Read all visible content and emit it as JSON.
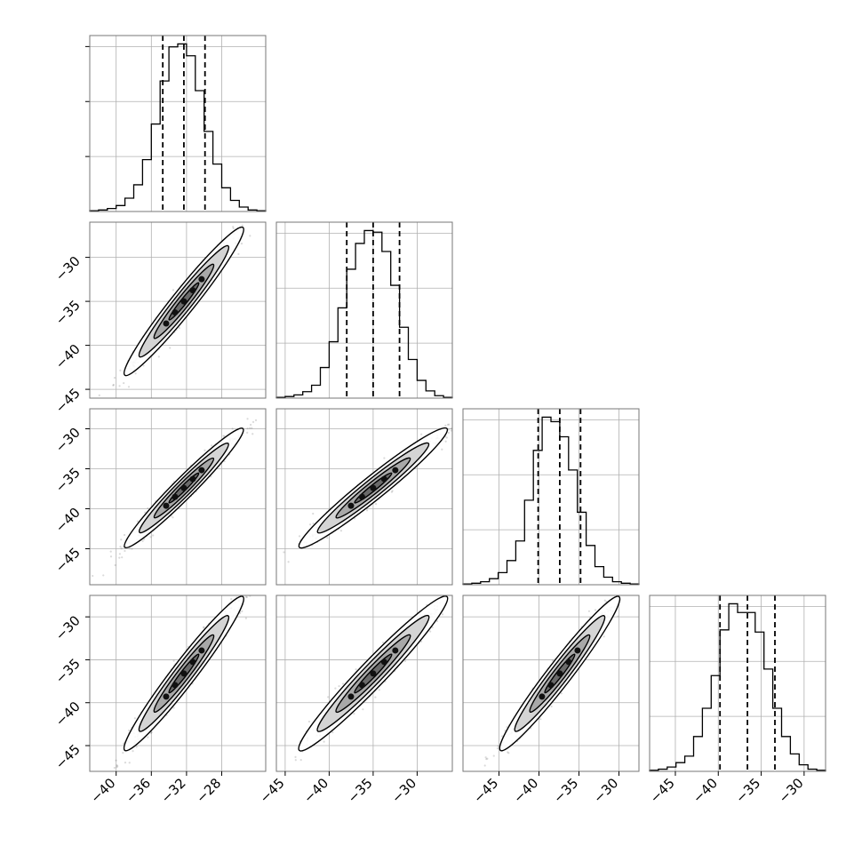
{
  "chart_data": {
    "type": "corner",
    "n_params": 4,
    "params": [
      {
        "range": [
          -43,
          -23
        ],
        "ticks": [
          -40,
          -36,
          -32,
          -28
        ],
        "tick_labels": [
          "−40",
          "−36",
          "−32",
          "−28"
        ],
        "quantiles": [
          -34.7,
          -32.3,
          -29.9
        ],
        "hist": [
          1,
          2,
          4,
          8,
          18,
          36,
          70,
          118,
          176,
          222,
          226,
          210,
          163,
          108,
          64,
          32,
          15,
          6,
          2,
          1
        ],
        "hist_max": 226
      },
      {
        "range": [
          -46,
          -26
        ],
        "ticks": [
          -45,
          -40,
          -35,
          -30
        ],
        "tick_labels": [
          "−45",
          "−40",
          "−35",
          "−30"
        ],
        "quantiles": [
          -38.0,
          -35.0,
          -32.0
        ],
        "hist": [
          1,
          2,
          4,
          8,
          16,
          38,
          70,
          112,
          160,
          192,
          208,
          206,
          182,
          140,
          88,
          48,
          22,
          9,
          3,
          1
        ],
        "hist_max": 208
      },
      {
        "range": [
          -49.5,
          -27.5
        ],
        "ticks": [
          -45,
          -40,
          -35,
          -30
        ],
        "tick_labels": [
          "−45",
          "−40",
          "−35",
          "−30"
        ],
        "quantiles": [
          -40.1,
          -37.4,
          -34.8
        ],
        "hist": [
          1,
          2,
          4,
          8,
          16,
          32,
          58,
          112,
          178,
          222,
          216,
          196,
          152,
          96,
          52,
          24,
          10,
          4,
          2,
          1
        ],
        "hist_max": 222
      },
      {
        "range": [
          -48,
          -27.5
        ],
        "ticks": [
          -45,
          -40,
          -35,
          -30
        ],
        "tick_labels": [
          "−45",
          "−40",
          "−35",
          "−30"
        ],
        "quantiles": [
          -39.8,
          -36.6,
          -33.4
        ],
        "hist": [
          1,
          2,
          4,
          8,
          14,
          32,
          58,
          88,
          130,
          154,
          146,
          146,
          128,
          94,
          58,
          32,
          16,
          6,
          2,
          1
        ],
        "hist_max": 154
      }
    ],
    "correlation": 0.97,
    "x_tick_rotation": -45,
    "y_tick_rotation": -45,
    "grid": true,
    "colors": {
      "ink": "#000000",
      "grid": "#b0b0b0",
      "samples": "#555555",
      "frame": "#777777"
    }
  }
}
